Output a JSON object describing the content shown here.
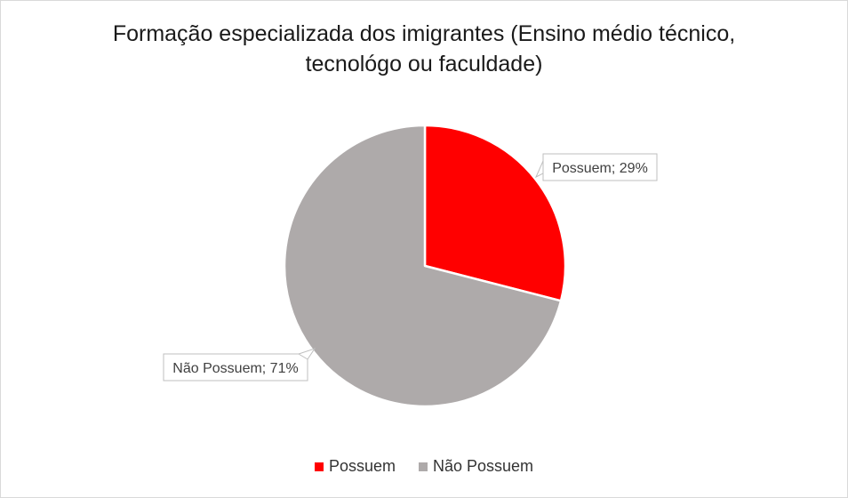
{
  "chart_data": {
    "type": "pie",
    "title_lines": [
      "Formação especializada dos imigrantes (Ensino médio técnico,",
      "tecnológo ou faculdade)"
    ],
    "slices": [
      {
        "label": "Possuem",
        "value": 29,
        "color": "#ff0000",
        "data_label": "Possuem; 29%"
      },
      {
        "label": "Não Possuem",
        "value": 71,
        "color": "#aeaaaa",
        "data_label": "Não Possuem; 71%"
      }
    ],
    "legend_position": "bottom",
    "legend": [
      "Possuem",
      "Não Possuem"
    ]
  }
}
